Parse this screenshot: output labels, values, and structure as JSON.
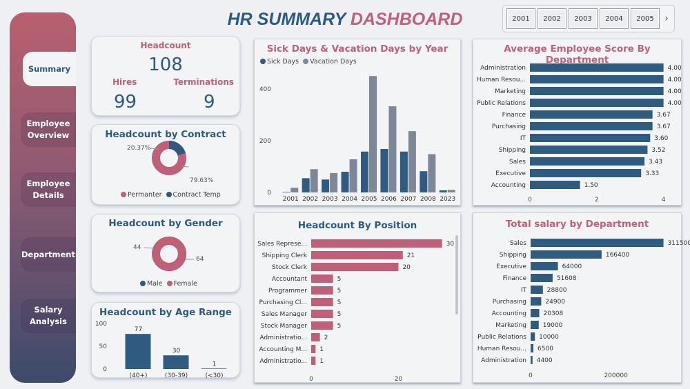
{
  "colors": {
    "blue": "#2f5b80",
    "pink": "#c06078",
    "gray": "#7d8795"
  },
  "title": {
    "part1": "HR SUMMARY",
    "part2": "DASHBOARD"
  },
  "nav": [
    {
      "label": "Summary",
      "active": true
    },
    {
      "label": "Employee Overview"
    },
    {
      "label": "Employee Details"
    },
    {
      "label": "Department"
    },
    {
      "label": "Salary Analysis"
    }
  ],
  "slicer": {
    "years": [
      "2001",
      "2002",
      "2003",
      "2004",
      "2005"
    ],
    "next_icon": "chevron-right-icon"
  },
  "kpi": {
    "headcount_label": "Headcount",
    "headcount": "108",
    "hires_label": "Hires",
    "hires": "99",
    "terminations_label": "Terminations",
    "terminations": "9"
  },
  "contract": {
    "title": "Headcount by Contract",
    "label_temp": "20.37%",
    "label_perm": "79.63%",
    "legend": [
      "Permanter",
      "Contract Temp"
    ]
  },
  "gender": {
    "title": "Headcount by Gender",
    "female_label": "44",
    "male_label": "64",
    "legend": [
      "Male",
      "Female"
    ]
  },
  "chart_data": [
    {
      "id": "age",
      "type": "bar",
      "title": "Headcount by Age Range",
      "categories": [
        "(40+)",
        "(30-39)",
        "(<30)"
      ],
      "values": [
        77,
        30,
        1
      ],
      "ylim": [
        0,
        100
      ],
      "yticks": [
        "0",
        "50",
        "100"
      ]
    },
    {
      "id": "days",
      "type": "bar",
      "title": "Sick Days & Vacation Days by Year",
      "categories": [
        "2001",
        "2002",
        "2003",
        "2004",
        "2005",
        "2006",
        "2007",
        "2008",
        "2023"
      ],
      "series": [
        {
          "name": "Sick Days",
          "values": [
            2,
            55,
            50,
            80,
            158,
            168,
            158,
            82,
            8
          ]
        },
        {
          "name": "Vacation Days",
          "values": [
            18,
            90,
            75,
            128,
            450,
            333,
            237,
            148,
            10
          ]
        }
      ],
      "ylim": [
        0,
        480
      ],
      "yticks": [
        "0",
        "200",
        "400"
      ],
      "legend": "top-left"
    },
    {
      "id": "position",
      "type": "bar",
      "orientation": "horizontal",
      "title": "Headcount By Position",
      "categories": [
        "Sales Represe...",
        "Shipping Clerk",
        "Stock Clerk",
        "Accountant",
        "Programmer",
        "Purchasing Cl...",
        "Sales Manager",
        "Stock Manager",
        "Administratio...",
        "Accounting M...",
        "Administratio..."
      ],
      "values": [
        30,
        21,
        20,
        5,
        5,
        5,
        5,
        5,
        2,
        1,
        1
      ],
      "xlim": [
        0,
        31
      ],
      "xticks": [
        "0",
        "20"
      ]
    },
    {
      "id": "score",
      "type": "bar",
      "orientation": "horizontal",
      "title": "Average Employee Score By Department",
      "categories": [
        "Administration",
        "Human Resou...",
        "Marketing",
        "Public Relations",
        "Finance",
        "Purchasing",
        "IT",
        "Shipping",
        "Sales",
        "Executive",
        "Accounting"
      ],
      "values": [
        4.0,
        4.0,
        4.0,
        4.0,
        3.67,
        3.67,
        3.6,
        3.52,
        3.43,
        3.33,
        1.5
      ],
      "labels": [
        "4.00",
        "4.00",
        "4.00",
        "4.00",
        "3.67",
        "3.67",
        "3.60",
        "3.52",
        "3.43",
        "3.33",
        "1.50"
      ],
      "xlim": [
        0,
        4.4
      ],
      "xticks": [
        "0",
        "2",
        "4"
      ]
    },
    {
      "id": "salary",
      "type": "bar",
      "orientation": "horizontal",
      "title": "Total salary by Department",
      "categories": [
        "Sales",
        "Shipping",
        "Executive",
        "Finance",
        "IT",
        "Purchasing",
        "Accounting",
        "Marketing",
        "Public Relations",
        "Human Resou...",
        "Administration"
      ],
      "values": [
        311500,
        166400,
        64000,
        51608,
        28800,
        24900,
        20308,
        19000,
        10000,
        6500,
        4400
      ],
      "xlim": [
        0,
        330000
      ],
      "xticks": [
        "0",
        "200000"
      ]
    }
  ]
}
